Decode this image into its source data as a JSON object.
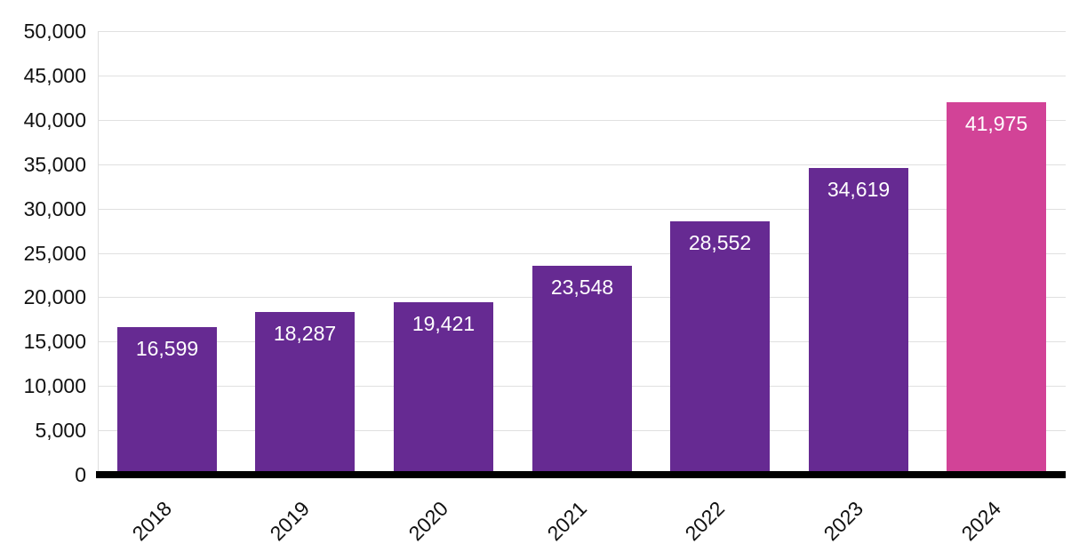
{
  "chart_data": {
    "type": "bar",
    "title": "",
    "xlabel": "",
    "ylabel": "",
    "categories": [
      "2018",
      "2019",
      "2020",
      "2021",
      "2022",
      "2023",
      "2024"
    ],
    "values": [
      16599,
      18287,
      19421,
      23548,
      28552,
      34619,
      41975
    ],
    "value_labels": [
      "16,599",
      "18,287",
      "19,421",
      "23,548",
      "28,552",
      "34,619",
      "41,975"
    ],
    "bar_colors": [
      "#662A92",
      "#662A92",
      "#662A92",
      "#662A92",
      "#662A92",
      "#662A92",
      "#D24397"
    ],
    "highlight_index": 6,
    "ylim": [
      0,
      50000
    ],
    "ytick_step": 5000,
    "ytick_labels": [
      "0",
      "5,000",
      "10,000",
      "15,000",
      "20,000",
      "25,000",
      "30,000",
      "35,000",
      "40,000",
      "45,000",
      "50,000"
    ],
    "grid": true,
    "legend": false,
    "x_tick_rotation_deg": -45,
    "bar_label_position": "inside-top",
    "colors": {
      "bar_default": "#662A92",
      "bar_highlight": "#D24397",
      "grid_line": "#E0E0E0",
      "axis_line": "#000000",
      "tick_text": "#111111",
      "bar_label_text": "#FFFFFF",
      "background": "#FFFFFF"
    }
  }
}
